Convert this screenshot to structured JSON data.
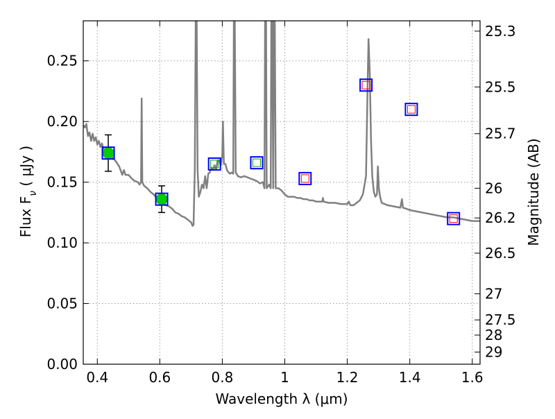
{
  "chart_data": {
    "type": "scatter",
    "xlabel": "Wavelength  λ (μm)",
    "ylabel": "Flux  F",
    "ylabel_sub": "ν",
    "ylabel_unit": " ( μJy )",
    "y2label": "Magnitude (AB)",
    "xlim": [
      0.355,
      1.625
    ],
    "ylim": [
      0.0,
      0.283
    ],
    "grid": true,
    "x_ticks": [
      {
        "value": 0.4,
        "label": "0.4"
      },
      {
        "value": 0.6,
        "label": "0.6"
      },
      {
        "value": 0.8,
        "label": "0.8"
      },
      {
        "value": 1.0,
        "label": "1"
      },
      {
        "value": 1.2,
        "label": "1.2"
      },
      {
        "value": 1.4,
        "label": "1.4"
      },
      {
        "value": 1.6,
        "label": "1.6"
      }
    ],
    "y_ticks": [
      {
        "value": 0.0,
        "label": "0.00"
      },
      {
        "value": 0.05,
        "label": "0.05"
      },
      {
        "value": 0.1,
        "label": "0.10"
      },
      {
        "value": 0.15,
        "label": "0.15"
      },
      {
        "value": 0.2,
        "label": "0.20"
      },
      {
        "value": 0.25,
        "label": "0.25"
      }
    ],
    "y2_ticks": [
      {
        "flux": 0.2745,
        "label": "25.3"
      },
      {
        "flux": 0.2285,
        "label": "25.5"
      },
      {
        "flux": 0.19,
        "label": "25.7"
      },
      {
        "flux": 0.145,
        "label": "26"
      },
      {
        "flux": 0.1205,
        "label": "26.2"
      },
      {
        "flux": 0.0915,
        "label": "26.5"
      },
      {
        "flux": 0.058,
        "label": "27"
      },
      {
        "flux": 0.0365,
        "label": "27.5"
      },
      {
        "flux": 0.024,
        "label": "28"
      },
      {
        "flux": 0.01,
        "label": "29"
      }
    ],
    "colors": {
      "spectrum": "#808080",
      "observed": "#00cc00",
      "model_box": "#0000ff",
      "model_inner_red": "#ff0000",
      "model_inner_green": "#00aa00",
      "errorbar": "#000000",
      "grid": "#9a9a9a"
    },
    "series": [
      {
        "kind": "line",
        "role": "model-spectrum",
        "points": [
          [
            0.355,
            0.197
          ],
          [
            0.36,
            0.195
          ],
          [
            0.365,
            0.198
          ],
          [
            0.37,
            0.188
          ],
          [
            0.375,
            0.191
          ],
          [
            0.38,
            0.184
          ],
          [
            0.385,
            0.19
          ],
          [
            0.39,
            0.184
          ],
          [
            0.395,
            0.187
          ],
          [
            0.4,
            0.181
          ],
          [
            0.405,
            0.184
          ],
          [
            0.41,
            0.179
          ],
          [
            0.415,
            0.182
          ],
          [
            0.42,
            0.177
          ],
          [
            0.43,
            0.175
          ],
          [
            0.44,
            0.172
          ],
          [
            0.45,
            0.17
          ],
          [
            0.46,
            0.167
          ],
          [
            0.47,
            0.163
          ],
          [
            0.48,
            0.156
          ],
          [
            0.485,
            0.16
          ],
          [
            0.49,
            0.156
          ],
          [
            0.5,
            0.156
          ],
          [
            0.51,
            0.153
          ],
          [
            0.52,
            0.151
          ],
          [
            0.53,
            0.15
          ],
          [
            0.535,
            0.148
          ],
          [
            0.54,
            0.15
          ],
          [
            0.542,
            0.219
          ],
          [
            0.544,
            0.15
          ],
          [
            0.55,
            0.147
          ],
          [
            0.56,
            0.145
          ],
          [
            0.57,
            0.142
          ],
          [
            0.58,
            0.14
          ],
          [
            0.59,
            0.137
          ],
          [
            0.6,
            0.137
          ],
          [
            0.61,
            0.134
          ],
          [
            0.62,
            0.131
          ],
          [
            0.63,
            0.13
          ],
          [
            0.64,
            0.128
          ],
          [
            0.65,
            0.125
          ],
          [
            0.66,
            0.124
          ],
          [
            0.67,
            0.122
          ],
          [
            0.68,
            0.121
          ],
          [
            0.69,
            0.119
          ],
          [
            0.7,
            0.117
          ],
          [
            0.705,
            0.114
          ],
          [
            0.708,
            0.115
          ],
          [
            0.712,
            0.16
          ],
          [
            0.715,
            0.283
          ],
          [
            0.718,
            0.283
          ],
          [
            0.721,
            0.16
          ],
          [
            0.725,
            0.138
          ],
          [
            0.73,
            0.142
          ],
          [
            0.735,
            0.148
          ],
          [
            0.74,
            0.145
          ],
          [
            0.745,
            0.155
          ],
          [
            0.75,
            0.145
          ],
          [
            0.755,
            0.157
          ],
          [
            0.76,
            0.158
          ],
          [
            0.765,
            0.162
          ],
          [
            0.77,
            0.16
          ],
          [
            0.775,
            0.164
          ],
          [
            0.78,
            0.16
          ],
          [
            0.785,
            0.168
          ],
          [
            0.79,
            0.168
          ],
          [
            0.795,
            0.164
          ],
          [
            0.8,
            0.172
          ],
          [
            0.802,
            0.2
          ],
          [
            0.805,
            0.165
          ],
          [
            0.81,
            0.165
          ],
          [
            0.815,
            0.16
          ],
          [
            0.82,
            0.158
          ],
          [
            0.825,
            0.157
          ],
          [
            0.83,
            0.158
          ],
          [
            0.835,
            0.157
          ],
          [
            0.837,
            0.283
          ],
          [
            0.84,
            0.283
          ],
          [
            0.843,
            0.158
          ],
          [
            0.85,
            0.155
          ],
          [
            0.86,
            0.154
          ],
          [
            0.87,
            0.155
          ],
          [
            0.88,
            0.154
          ],
          [
            0.89,
            0.153
          ],
          [
            0.9,
            0.152
          ],
          [
            0.91,
            0.151
          ],
          [
            0.92,
            0.149
          ],
          [
            0.93,
            0.15
          ],
          [
            0.935,
            0.145
          ],
          [
            0.937,
            0.283
          ],
          [
            0.94,
            0.283
          ],
          [
            0.942,
            0.145
          ],
          [
            0.95,
            0.148
          ],
          [
            0.955,
            0.145
          ],
          [
            0.957,
            0.283
          ],
          [
            0.96,
            0.283
          ],
          [
            0.963,
            0.145
          ],
          [
            0.965,
            0.283
          ],
          [
            0.968,
            0.283
          ],
          [
            0.971,
            0.145
          ],
          [
            0.98,
            0.145
          ],
          [
            0.99,
            0.143
          ],
          [
            1.0,
            0.14
          ],
          [
            1.01,
            0.138
          ],
          [
            1.02,
            0.138
          ],
          [
            1.03,
            0.138
          ],
          [
            1.04,
            0.137
          ],
          [
            1.05,
            0.137
          ],
          [
            1.06,
            0.136
          ],
          [
            1.07,
            0.136
          ],
          [
            1.08,
            0.135
          ],
          [
            1.09,
            0.135
          ],
          [
            1.1,
            0.134
          ],
          [
            1.12,
            0.134
          ],
          [
            1.122,
            0.137
          ],
          [
            1.124,
            0.134
          ],
          [
            1.14,
            0.133
          ],
          [
            1.16,
            0.133
          ],
          [
            1.18,
            0.132
          ],
          [
            1.2,
            0.132
          ],
          [
            1.205,
            0.134
          ],
          [
            1.21,
            0.131
          ],
          [
            1.22,
            0.131
          ],
          [
            1.23,
            0.133
          ],
          [
            1.24,
            0.135
          ],
          [
            1.25,
            0.14
          ],
          [
            1.26,
            0.155
          ],
          [
            1.265,
            0.23
          ],
          [
            1.268,
            0.268
          ],
          [
            1.272,
            0.24
          ],
          [
            1.276,
            0.185
          ],
          [
            1.28,
            0.155
          ],
          [
            1.285,
            0.142
          ],
          [
            1.29,
            0.138
          ],
          [
            1.295,
            0.14
          ],
          [
            1.298,
            0.163
          ],
          [
            1.301,
            0.145
          ],
          [
            1.305,
            0.138
          ],
          [
            1.31,
            0.133
          ],
          [
            1.33,
            0.131
          ],
          [
            1.35,
            0.13
          ],
          [
            1.37,
            0.129
          ],
          [
            1.375,
            0.136
          ],
          [
            1.378,
            0.129
          ],
          [
            1.39,
            0.128
          ],
          [
            1.4,
            0.127
          ],
          [
            1.42,
            0.126
          ],
          [
            1.44,
            0.125
          ],
          [
            1.46,
            0.124
          ],
          [
            1.48,
            0.123
          ],
          [
            1.5,
            0.122
          ],
          [
            1.52,
            0.121
          ],
          [
            1.54,
            0.121
          ],
          [
            1.56,
            0.12
          ],
          [
            1.58,
            0.119
          ],
          [
            1.6,
            0.118
          ],
          [
            1.625,
            0.118
          ]
        ]
      },
      {
        "kind": "points",
        "role": "observed-photometry",
        "points": [
          {
            "x": 0.435,
            "y": 0.174,
            "err": 0.015
          },
          {
            "x": 0.606,
            "y": 0.136,
            "err": 0.011
          }
        ]
      },
      {
        "kind": "points",
        "role": "model-photometry",
        "points": [
          {
            "x": 0.435,
            "y": 0.174,
            "inner": "none"
          },
          {
            "x": 0.606,
            "y": 0.136,
            "inner": "none"
          },
          {
            "x": 0.775,
            "y": 0.165,
            "inner": "green"
          },
          {
            "x": 0.91,
            "y": 0.166,
            "inner": "green"
          },
          {
            "x": 1.065,
            "y": 0.153,
            "inner": "red"
          },
          {
            "x": 1.26,
            "y": 0.23,
            "inner": "red"
          },
          {
            "x": 1.405,
            "y": 0.21,
            "inner": "red"
          },
          {
            "x": 1.54,
            "y": 0.12,
            "inner": "red"
          }
        ]
      }
    ]
  }
}
